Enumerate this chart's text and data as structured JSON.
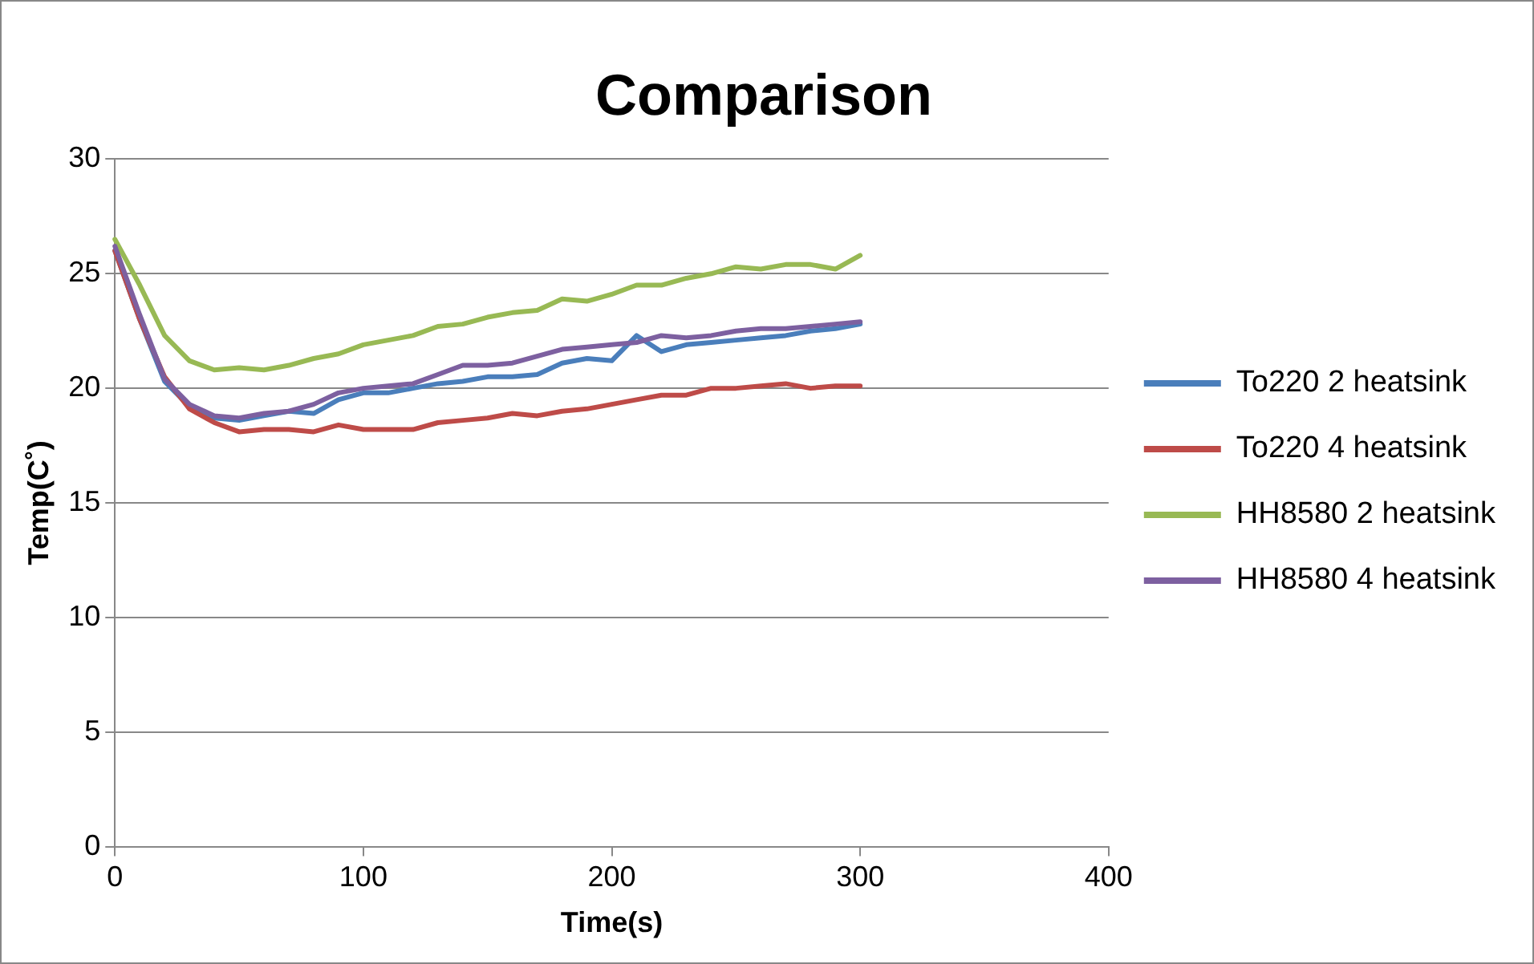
{
  "chart_data": {
    "type": "line",
    "title": "Comparison",
    "xlabel": "Time(s)",
    "ylabel": "Temp(C˚)",
    "x": [
      0,
      10,
      20,
      30,
      40,
      50,
      60,
      70,
      80,
      90,
      100,
      110,
      120,
      130,
      140,
      150,
      160,
      170,
      180,
      190,
      200,
      210,
      220,
      230,
      240,
      250,
      260,
      270,
      280,
      290,
      300
    ],
    "series": [
      {
        "name": "To220 2 heatsink",
        "color": "#4a7ebb",
        "values": [
          26.0,
          23.0,
          20.3,
          19.2,
          18.7,
          18.6,
          18.8,
          19.0,
          18.9,
          19.5,
          19.8,
          19.8,
          20.0,
          20.2,
          20.3,
          20.5,
          20.5,
          20.6,
          21.1,
          21.3,
          21.2,
          22.3,
          21.6,
          21.9,
          22.0,
          22.1,
          22.2,
          22.3,
          22.5,
          22.6,
          22.8
        ]
      },
      {
        "name": "To220 4 heatsink",
        "color": "#be4b48",
        "values": [
          26.0,
          23.0,
          20.5,
          19.1,
          18.5,
          18.1,
          18.2,
          18.2,
          18.1,
          18.4,
          18.2,
          18.2,
          18.2,
          18.5,
          18.6,
          18.7,
          18.9,
          18.8,
          19.0,
          19.1,
          19.3,
          19.5,
          19.7,
          19.7,
          20.0,
          20.0,
          20.1,
          20.2,
          20.0,
          20.1,
          20.1
        ]
      },
      {
        "name": "HH8580 2 heatsink",
        "color": "#98b954",
        "values": [
          26.5,
          24.5,
          22.3,
          21.2,
          20.8,
          20.9,
          20.8,
          21.0,
          21.3,
          21.5,
          21.9,
          22.1,
          22.3,
          22.7,
          22.8,
          23.1,
          23.3,
          23.4,
          23.9,
          23.8,
          24.1,
          24.5,
          24.5,
          24.8,
          25.0,
          25.3,
          25.2,
          25.4,
          25.4,
          25.2,
          25.8
        ]
      },
      {
        "name": "HH8580 4 heatsink",
        "color": "#7d60a0",
        "values": [
          26.2,
          23.2,
          20.4,
          19.3,
          18.8,
          18.7,
          18.9,
          19.0,
          19.3,
          19.8,
          20.0,
          20.1,
          20.2,
          20.6,
          21.0,
          21.0,
          21.1,
          21.4,
          21.7,
          21.8,
          21.9,
          22.0,
          22.3,
          22.2,
          22.3,
          22.5,
          22.6,
          22.6,
          22.7,
          22.8,
          22.9
        ]
      }
    ],
    "xlim": [
      0,
      400
    ],
    "xticks": [
      0,
      100,
      200,
      300,
      400
    ],
    "ylim": [
      0,
      30
    ],
    "yticks": [
      0,
      5,
      10,
      15,
      20,
      25,
      30
    ],
    "grid": "y",
    "legend": "right",
    "marker": "none",
    "line_style": "solid"
  }
}
